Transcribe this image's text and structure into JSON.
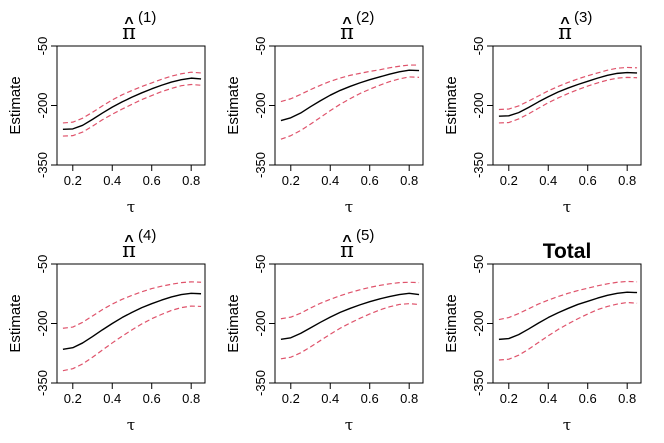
{
  "figure": {
    "background": "#ffffff",
    "estimate_color": "#000000",
    "band_color": "#df536b"
  },
  "chart_data": [
    {
      "type": "line",
      "title": {
        "base": "π",
        "accent": "^",
        "superscript": "(1)"
      },
      "xlabel": "τ",
      "ylabel": "Estimate",
      "xlim": [
        0.12,
        0.87
      ],
      "ylim": [
        -350,
        -50
      ],
      "xticks": [
        0.2,
        0.4,
        0.6,
        0.8
      ],
      "yticks": [
        -50,
        -200,
        -350
      ],
      "xtick_labels": [
        "0.2",
        "0.4",
        "0.6",
        "0.8"
      ],
      "ytick_labels": [
        "-50",
        "-200",
        "-350"
      ],
      "x": [
        0.15,
        0.2,
        0.25,
        0.3,
        0.35,
        0.4,
        0.45,
        0.5,
        0.55,
        0.6,
        0.65,
        0.7,
        0.75,
        0.8,
        0.85
      ],
      "series": [
        {
          "role": "upper",
          "style": "dashed",
          "values": [
            -244,
            -242,
            -232,
            -217,
            -201,
            -186,
            -173,
            -162,
            -152,
            -143,
            -134,
            -126,
            -120,
            -116,
            -118
          ]
        },
        {
          "role": "estimate",
          "style": "solid",
          "values": [
            -260,
            -259,
            -250,
            -235,
            -219,
            -204,
            -191,
            -179,
            -168,
            -158,
            -149,
            -141,
            -135,
            -131,
            -133
          ]
        },
        {
          "role": "lower",
          "style": "dashed",
          "values": [
            -277,
            -276,
            -267,
            -252,
            -236,
            -222,
            -209,
            -197,
            -185,
            -175,
            -165,
            -157,
            -150,
            -147,
            -149
          ]
        }
      ]
    },
    {
      "type": "line",
      "title": {
        "base": "π",
        "accent": "^",
        "superscript": "(2)"
      },
      "xlabel": "τ",
      "ylabel": "Estimate",
      "xlim": [
        0.12,
        0.87
      ],
      "ylim": [
        -350,
        -50
      ],
      "xticks": [
        0.2,
        0.4,
        0.6,
        0.8
      ],
      "yticks": [
        -50,
        -200,
        -350
      ],
      "xtick_labels": [
        "0.2",
        "0.4",
        "0.6",
        "0.8"
      ],
      "ytick_labels": [
        "-50",
        "-200",
        "-350"
      ],
      "x": [
        0.15,
        0.2,
        0.25,
        0.3,
        0.35,
        0.4,
        0.45,
        0.5,
        0.55,
        0.6,
        0.65,
        0.7,
        0.75,
        0.8,
        0.85
      ],
      "series": [
        {
          "role": "upper",
          "style": "dashed",
          "values": [
            -190,
            -183,
            -172,
            -160,
            -149,
            -139,
            -131,
            -124,
            -119,
            -114,
            -110,
            -105,
            -101,
            -98,
            -98
          ]
        },
        {
          "role": "estimate",
          "style": "solid",
          "values": [
            -238,
            -231,
            -219,
            -203,
            -188,
            -174,
            -162,
            -152,
            -143,
            -135,
            -128,
            -121,
            -115,
            -111,
            -112
          ]
        },
        {
          "role": "lower",
          "style": "dashed",
          "values": [
            -285,
            -276,
            -263,
            -247,
            -230,
            -213,
            -197,
            -183,
            -170,
            -159,
            -149,
            -140,
            -133,
            -128,
            -129
          ]
        }
      ]
    },
    {
      "type": "line",
      "title": {
        "base": "π",
        "accent": "^",
        "superscript": "(3)"
      },
      "xlabel": "τ",
      "ylabel": "Estimate",
      "xlim": [
        0.12,
        0.87
      ],
      "ylim": [
        -350,
        -50
      ],
      "xticks": [
        0.2,
        0.4,
        0.6,
        0.8
      ],
      "yticks": [
        -50,
        -200,
        -350
      ],
      "xtick_labels": [
        "0.2",
        "0.4",
        "0.6",
        "0.8"
      ],
      "ytick_labels": [
        "-50",
        "-200",
        "-350"
      ],
      "x": [
        0.15,
        0.2,
        0.25,
        0.3,
        0.35,
        0.4,
        0.45,
        0.5,
        0.55,
        0.6,
        0.65,
        0.7,
        0.75,
        0.8,
        0.85
      ],
      "series": [
        {
          "role": "upper",
          "style": "dashed",
          "values": [
            -210,
            -209,
            -201,
            -189,
            -176,
            -163,
            -152,
            -142,
            -133,
            -125,
            -118,
            -111,
            -106,
            -104,
            -105
          ]
        },
        {
          "role": "estimate",
          "style": "solid",
          "values": [
            -227,
            -226,
            -218,
            -205,
            -191,
            -178,
            -166,
            -156,
            -147,
            -139,
            -131,
            -124,
            -119,
            -117,
            -118
          ]
        },
        {
          "role": "lower",
          "style": "dashed",
          "values": [
            -244,
            -243,
            -234,
            -221,
            -207,
            -193,
            -181,
            -170,
            -160,
            -151,
            -143,
            -136,
            -131,
            -129,
            -130
          ]
        }
      ]
    },
    {
      "type": "line",
      "title": {
        "base": "π",
        "accent": "^",
        "superscript": "(4)"
      },
      "xlabel": "τ",
      "ylabel": "Estimate",
      "xlim": [
        0.12,
        0.87
      ],
      "ylim": [
        -350,
        -50
      ],
      "xticks": [
        0.2,
        0.4,
        0.6,
        0.8
      ],
      "yticks": [
        -50,
        -200,
        -350
      ],
      "xtick_labels": [
        "0.2",
        "0.4",
        "0.6",
        "0.8"
      ],
      "ytick_labels": [
        "-50",
        "-200",
        "-350"
      ],
      "x": [
        0.15,
        0.2,
        0.25,
        0.3,
        0.35,
        0.4,
        0.45,
        0.5,
        0.55,
        0.6,
        0.65,
        0.7,
        0.75,
        0.8,
        0.85
      ],
      "series": [
        {
          "role": "upper",
          "style": "dashed",
          "values": [
            -212,
            -209,
            -197,
            -181,
            -165,
            -151,
            -139,
            -129,
            -120,
            -112,
            -106,
            -101,
            -97,
            -95,
            -96
          ]
        },
        {
          "role": "estimate",
          "style": "solid",
          "values": [
            -265,
            -261,
            -249,
            -233,
            -216,
            -200,
            -185,
            -172,
            -160,
            -150,
            -141,
            -133,
            -127,
            -124,
            -125
          ]
        },
        {
          "role": "lower",
          "style": "dashed",
          "values": [
            -319,
            -314,
            -302,
            -285,
            -267,
            -249,
            -232,
            -216,
            -201,
            -188,
            -177,
            -167,
            -160,
            -156,
            -157
          ]
        }
      ]
    },
    {
      "type": "line",
      "title": {
        "base": "π",
        "accent": "^",
        "superscript": "(5)"
      },
      "xlabel": "τ",
      "ylabel": "Estimate",
      "xlim": [
        0.12,
        0.87
      ],
      "ylim": [
        -350,
        -50
      ],
      "xticks": [
        0.2,
        0.4,
        0.6,
        0.8
      ],
      "yticks": [
        -50,
        -200,
        -350
      ],
      "xtick_labels": [
        "0.2",
        "0.4",
        "0.6",
        "0.8"
      ],
      "ytick_labels": [
        "-50",
        "-200",
        "-350"
      ],
      "x": [
        0.15,
        0.2,
        0.25,
        0.3,
        0.35,
        0.4,
        0.45,
        0.5,
        0.55,
        0.6,
        0.65,
        0.7,
        0.75,
        0.8,
        0.85
      ],
      "series": [
        {
          "role": "upper",
          "style": "dashed",
          "values": [
            -188,
            -184,
            -174,
            -161,
            -149,
            -139,
            -130,
            -122,
            -115,
            -109,
            -104,
            -100,
            -97,
            -96,
            -97
          ]
        },
        {
          "role": "estimate",
          "style": "solid",
          "values": [
            -240,
            -236,
            -225,
            -211,
            -197,
            -184,
            -172,
            -162,
            -153,
            -145,
            -138,
            -132,
            -127,
            -124,
            -127
          ]
        },
        {
          "role": "lower",
          "style": "dashed",
          "values": [
            -289,
            -285,
            -274,
            -259,
            -243,
            -227,
            -212,
            -199,
            -187,
            -176,
            -166,
            -158,
            -152,
            -150,
            -152
          ]
        }
      ]
    },
    {
      "type": "line",
      "title": {
        "text": "Total"
      },
      "xlabel": "τ",
      "ylabel": "Estimate",
      "xlim": [
        0.12,
        0.87
      ],
      "ylim": [
        -350,
        -50
      ],
      "xticks": [
        0.2,
        0.4,
        0.6,
        0.8
      ],
      "yticks": [
        -50,
        -200,
        -350
      ],
      "xtick_labels": [
        "0.2",
        "0.4",
        "0.6",
        "0.8"
      ],
      "ytick_labels": [
        "-50",
        "-200",
        "-350"
      ],
      "x": [
        0.15,
        0.2,
        0.25,
        0.3,
        0.35,
        0.4,
        0.45,
        0.5,
        0.55,
        0.6,
        0.65,
        0.7,
        0.75,
        0.8,
        0.85
      ],
      "series": [
        {
          "role": "upper",
          "style": "dashed",
          "values": [
            -190,
            -185,
            -175,
            -163,
            -151,
            -141,
            -132,
            -124,
            -117,
            -111,
            -105,
            -100,
            -96,
            -94,
            -95
          ]
        },
        {
          "role": "estimate",
          "style": "solid",
          "values": [
            -240,
            -238,
            -228,
            -214,
            -199,
            -185,
            -173,
            -162,
            -152,
            -144,
            -136,
            -129,
            -124,
            -121,
            -122
          ]
        },
        {
          "role": "lower",
          "style": "dashed",
          "values": [
            -292,
            -290,
            -280,
            -265,
            -248,
            -231,
            -215,
            -201,
            -188,
            -176,
            -165,
            -157,
            -151,
            -147,
            -149
          ]
        }
      ]
    }
  ]
}
